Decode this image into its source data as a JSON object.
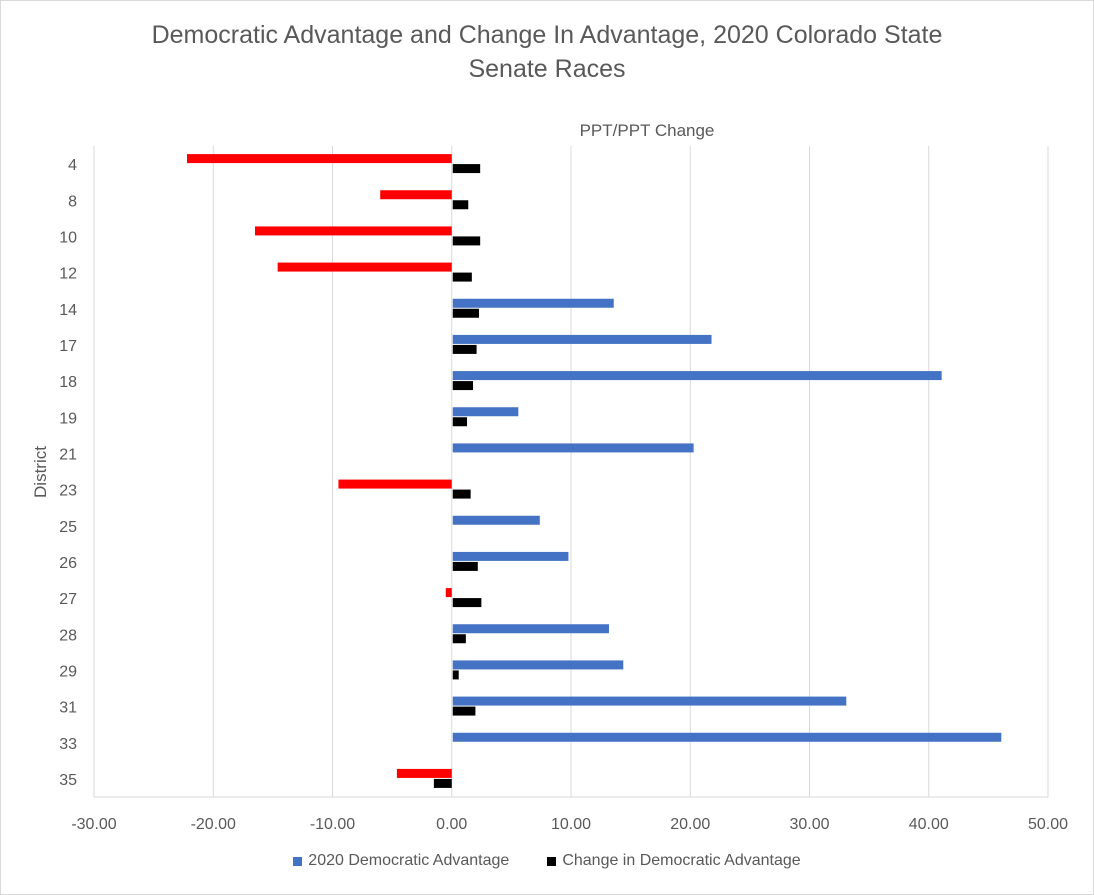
{
  "chart_data": {
    "type": "bar",
    "orientation": "horizontal",
    "title": "Democratic Advantage and Change In Advantage, 2020 Colorado State Senate Races",
    "title_lines": [
      "Democratic Advantage and Change In Advantage, 2020 Colorado State",
      "Senate Races"
    ],
    "xlabel": "PPT/PPT Change",
    "ylabel": "District",
    "xlim": [
      -30,
      50
    ],
    "xticks": [
      "-30.00",
      "-20.00",
      "-10.00",
      "0.00",
      "10.00",
      "20.00",
      "30.00",
      "40.00",
      "50.00"
    ],
    "xtick_values": [
      -30,
      -20,
      -10,
      0,
      10,
      20,
      30,
      40,
      50
    ],
    "categories": [
      "4",
      "8",
      "10",
      "12",
      "14",
      "17",
      "18",
      "19",
      "21",
      "23",
      "25",
      "26",
      "27",
      "28",
      "29",
      "31",
      "33",
      "35"
    ],
    "grid": "vertical",
    "legend_position": "bottom",
    "series": [
      {
        "name": "2020 Democratic Advantage",
        "color": "#4472c4",
        "negative_color": "#ff0000",
        "values": [
          -22.2,
          -6.0,
          -16.5,
          -14.6,
          13.5,
          21.7,
          41.0,
          5.5,
          20.2,
          -9.5,
          7.3,
          9.7,
          -0.5,
          13.1,
          14.3,
          33.0,
          46.0,
          -4.6
        ]
      },
      {
        "name": "Change in Democratic Advantage",
        "color": "#000000",
        "values": [
          2.3,
          1.3,
          2.3,
          1.6,
          2.2,
          2.0,
          1.7,
          1.2,
          0.0,
          1.5,
          0.0,
          2.1,
          2.4,
          1.1,
          0.5,
          1.9,
          0.0,
          -1.5
        ]
      }
    ]
  }
}
